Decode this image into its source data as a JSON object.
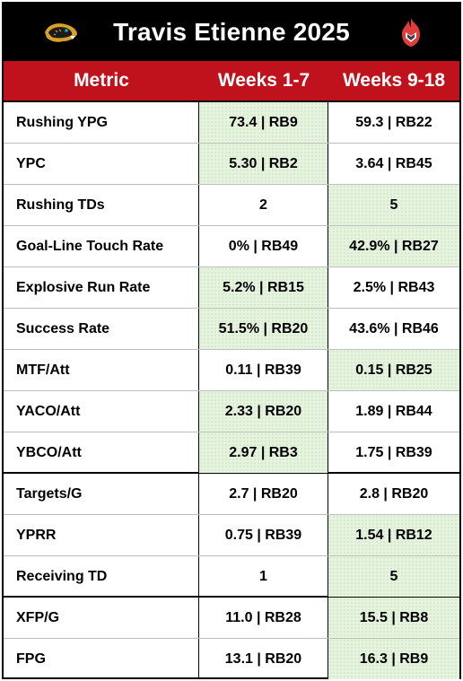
{
  "title": "Travis Etienne 2025",
  "header": {
    "metric": "Metric",
    "col1": "Weeks 1-7",
    "col2": "Weeks 9-18"
  },
  "rows": [
    {
      "metric": "Rushing YPG",
      "w1": "73.4 | RB9",
      "w2": "59.3 | RB22",
      "hl": 1
    },
    {
      "metric": "YPC",
      "w1": "5.30 | RB2",
      "w2": "3.64 | RB45",
      "hl": 1
    },
    {
      "metric": "Rushing TDs",
      "w1": "2",
      "w2": "5",
      "hl": 2
    },
    {
      "metric": "Goal-Line Touch Rate",
      "w1": "0% | RB49",
      "w2": "42.9% | RB27",
      "hl": 2
    },
    {
      "metric": "Explosive Run Rate",
      "w1": "5.2% | RB15",
      "w2": "2.5% | RB43",
      "hl": 1
    },
    {
      "metric": "Success Rate",
      "w1": "51.5% | RB20",
      "w2": "43.6% | RB46",
      "hl": 1
    },
    {
      "metric": "MTF/Att",
      "w1": "0.11 | RB39",
      "w2": "0.15 | RB25",
      "hl": 2
    },
    {
      "metric": "YACO/Att",
      "w1": "2.33 | RB20",
      "w2": "1.89 | RB44",
      "hl": 1
    },
    {
      "metric": "YBCO/Att",
      "w1": "2.97 | RB3",
      "w2": "1.75 | RB39",
      "hl": 1
    },
    {
      "metric": "Targets/G",
      "w1": "2.7 | RB20",
      "w2": "2.8 | RB20",
      "hl": 0
    },
    {
      "metric": "YPRR",
      "w1": "0.75 | RB39",
      "w2": "1.54 | RB12",
      "hl": 2
    },
    {
      "metric": "Receiving TD",
      "w1": "1",
      "w2": "5",
      "hl": 2
    },
    {
      "metric": "XFP/G",
      "w1": "11.0 | RB28",
      "w2": "15.5 | RB8",
      "hl": 2
    },
    {
      "metric": "FPG",
      "w1": "13.1 | RB20",
      "w2": "16.3 | RB9",
      "hl": 2
    }
  ],
  "colors": {
    "header_red": "#c0121c",
    "highlight_green": "#e6f3df",
    "title_bg": "#000000"
  },
  "icons": {
    "left": "jaguar-logo-icon",
    "right": "flame-shield-logo-icon"
  }
}
